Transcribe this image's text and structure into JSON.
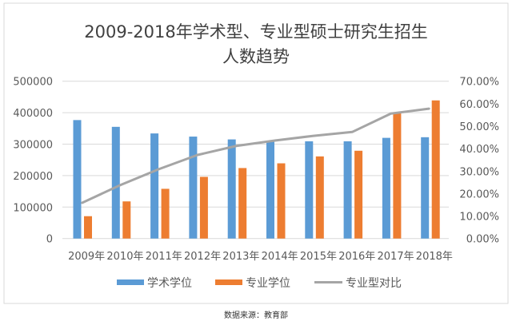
{
  "chart_data": {
    "type": "bar",
    "title": "2009-2018年学术型、专业型硕士研究生招生人数趋势",
    "title_lines": [
      "2009-2018年学术型、专业型硕士研究生招生",
      "人数趋势"
    ],
    "categories": [
      "2009年",
      "2010年",
      "2011年",
      "2012年",
      "2013年",
      "2014年",
      "2015年",
      "2016年",
      "2017年",
      "2018年"
    ],
    "series": [
      {
        "name": "学术学位",
        "type": "bar",
        "axis": "left",
        "color": "#5b9bd5",
        "values": [
          376500,
          355000,
          334000,
          324000,
          315000,
          311000,
          309000,
          309000,
          320000,
          322000
        ]
      },
      {
        "name": "专业学位",
        "type": "bar",
        "axis": "left",
        "color": "#ed7d31",
        "values": [
          71000,
          118000,
          158000,
          196000,
          224000,
          239000,
          261000,
          279000,
          398000,
          439000
        ]
      },
      {
        "name": "专业型对比",
        "type": "line",
        "axis": "right",
        "color": "#a5a5a5",
        "values": [
          15.8,
          23.8,
          30.9,
          37.2,
          41.2,
          43.6,
          45.7,
          47.4,
          55.6,
          57.8
        ]
      }
    ],
    "ylim_left": [
      0,
      500000
    ],
    "yticks_left": [
      "0",
      "100000",
      "200000",
      "300000",
      "400000",
      "500000"
    ],
    "ylim_right": [
      0,
      70
    ],
    "yticks_right": [
      "0.00%",
      "10.00%",
      "20.00%",
      "30.00%",
      "40.00%",
      "50.00%",
      "60.00%",
      "70.00%"
    ],
    "grid": true,
    "legend": "bottom",
    "source": "数据来源：教育部"
  }
}
